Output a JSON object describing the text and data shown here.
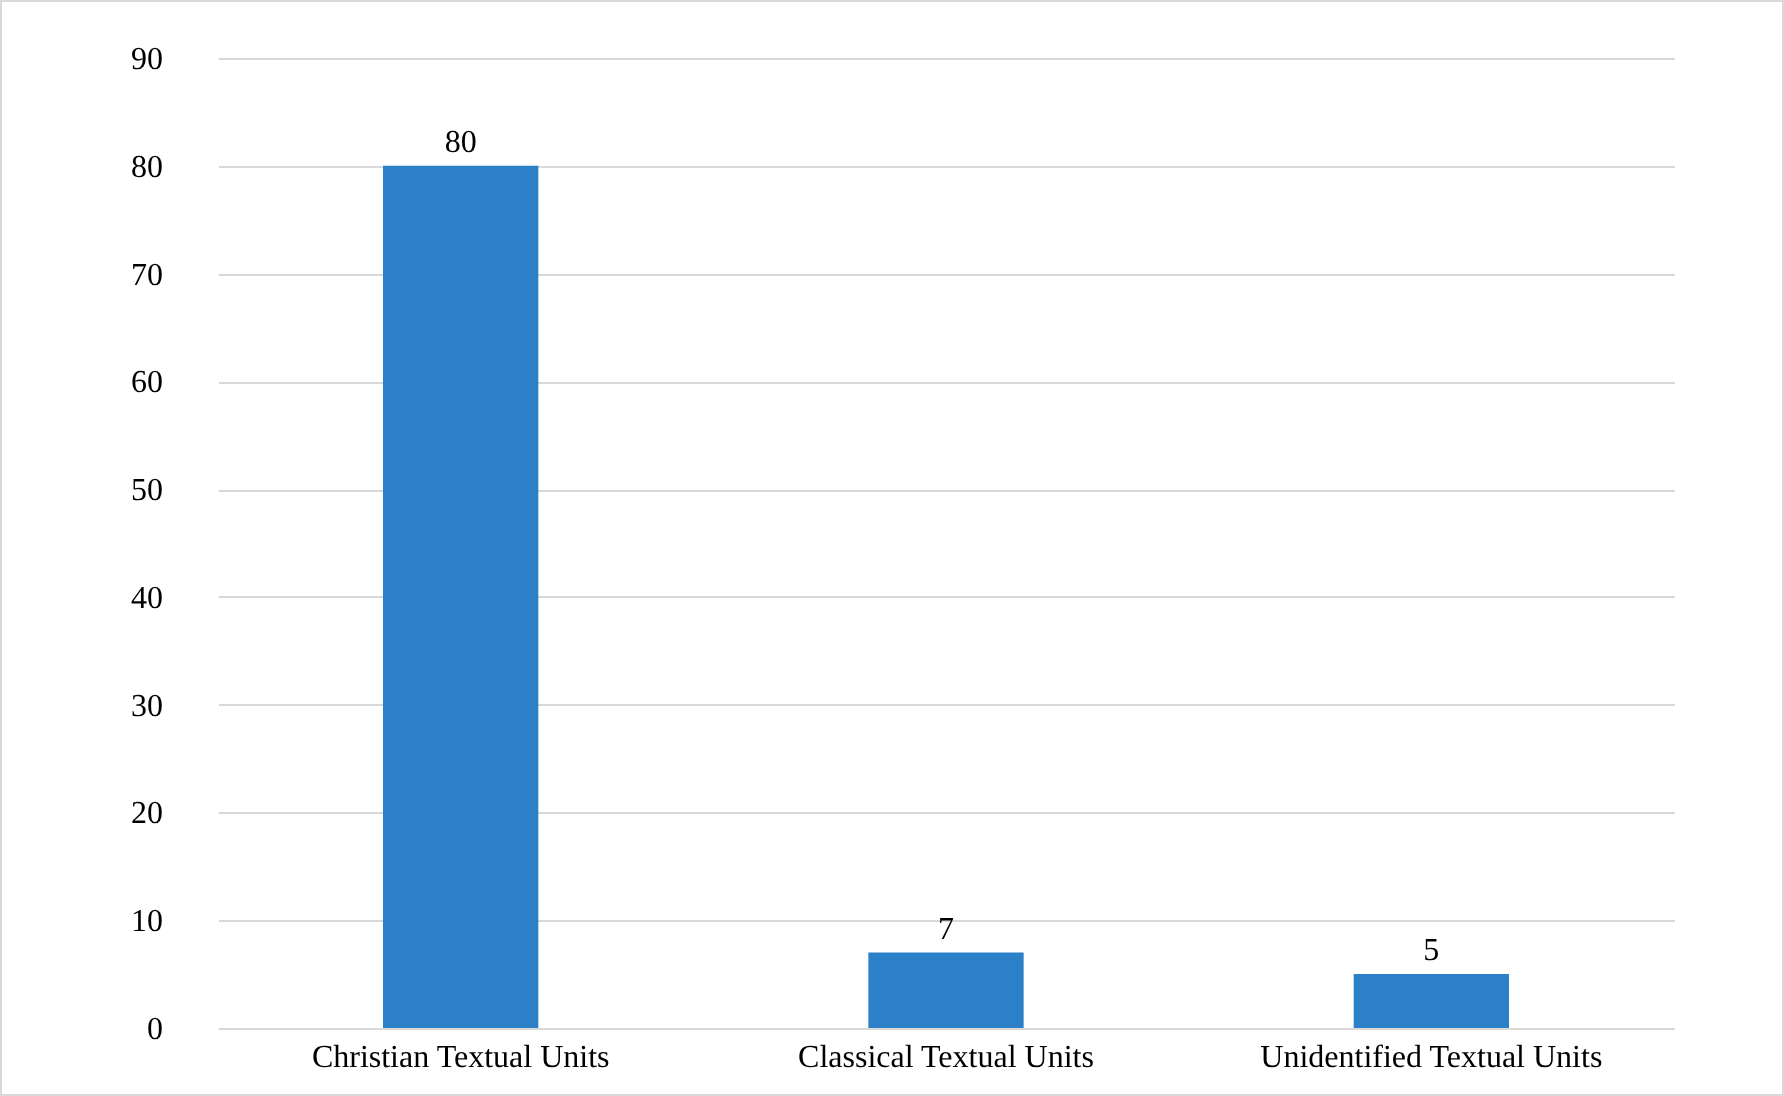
{
  "chart_data": {
    "type": "bar",
    "categories": [
      "Christian Textual Units",
      "Classical Textual Units",
      "Unidentified Textual Units"
    ],
    "values": [
      80,
      7,
      5
    ],
    "color": "#2b80c8",
    "ylim": [
      0,
      90
    ],
    "yticks": [
      0,
      10,
      20,
      30,
      40,
      50,
      60,
      70,
      80,
      90
    ],
    "grid": "y",
    "data_labels": true
  }
}
